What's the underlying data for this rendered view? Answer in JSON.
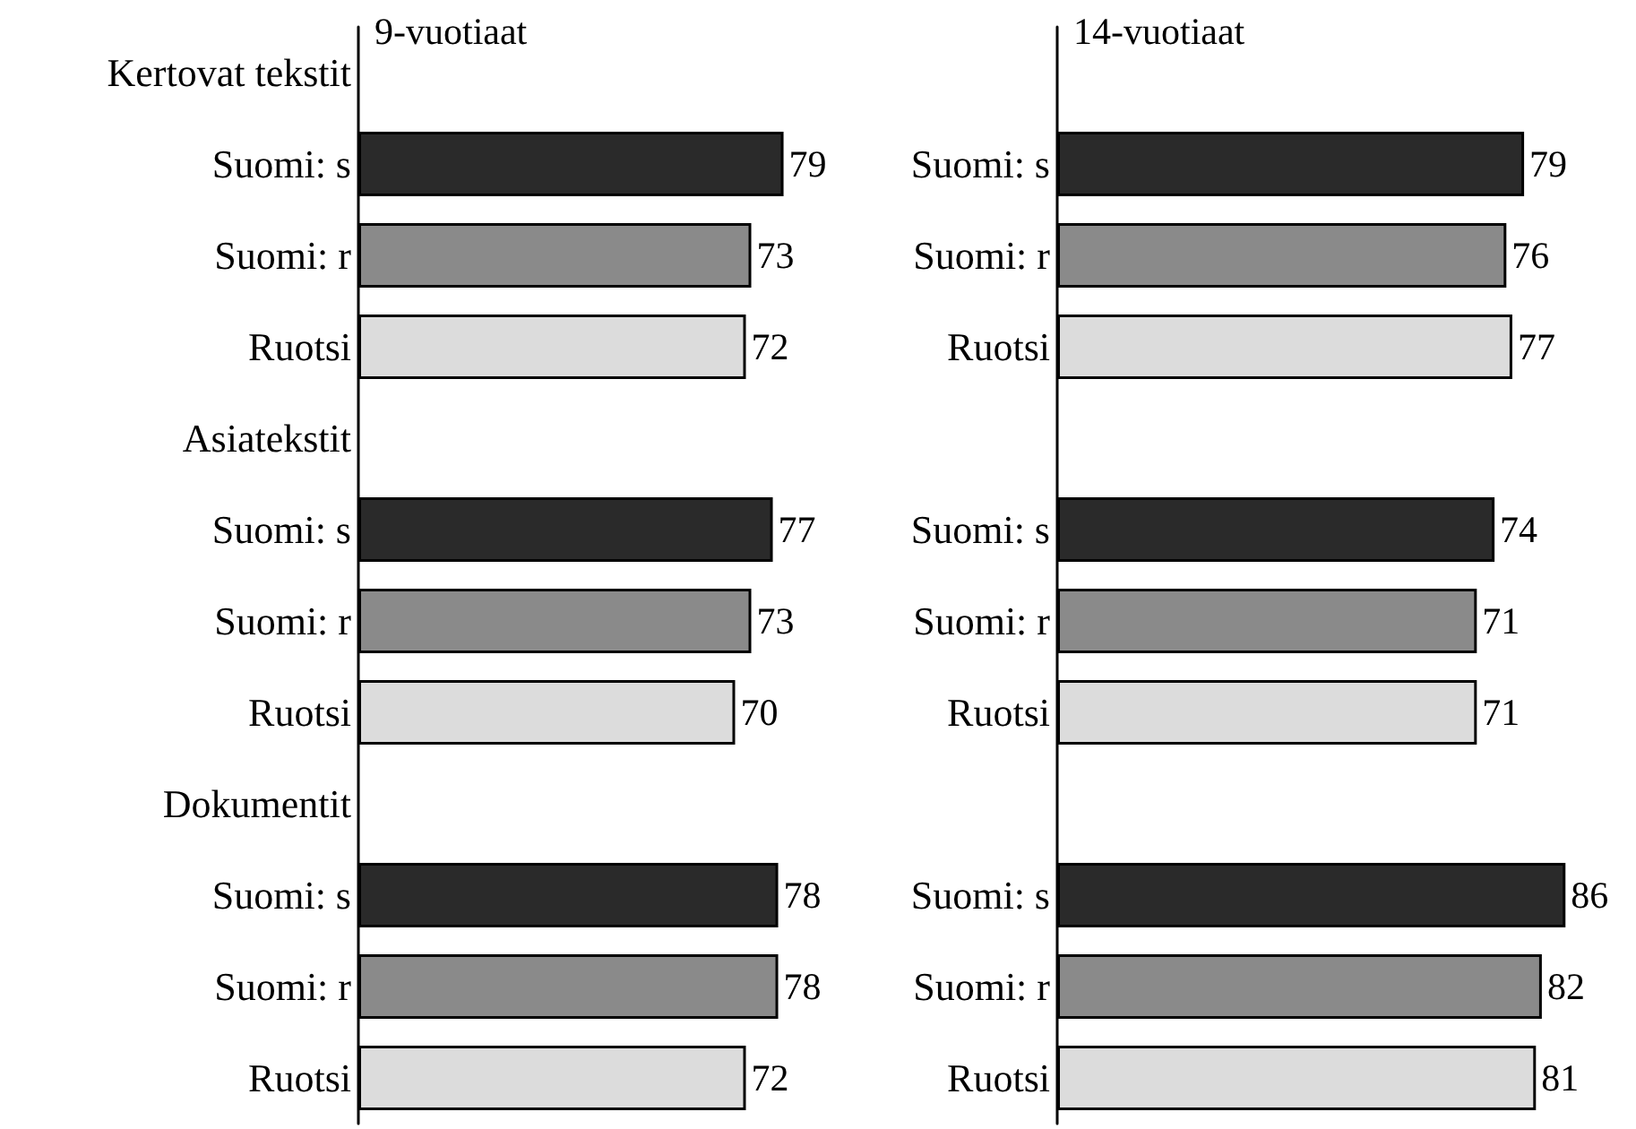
{
  "chart_data": [
    {
      "type": "bar",
      "orientation": "horizontal",
      "title": "9-vuotiaat",
      "data_labels": true,
      "tick_labels": "y",
      "categories": [
        "Kertovat tekstit",
        "Suomi: s",
        "Suomi: r",
        "Ruotsi",
        "Asiatekstit",
        "Suomi: s",
        "Suomi: r",
        "Ruotsi",
        "Dokumentit",
        "Suomi: s",
        "Suomi: r",
        "Ruotsi"
      ],
      "values": [
        null,
        79,
        73,
        72,
        null,
        77,
        73,
        70,
        null,
        78,
        78,
        72
      ],
      "colors": [
        null,
        "#2a2a2a",
        "#8a8a8a",
        "#dcdcdc",
        null,
        "#2a2a2a",
        "#8a8a8a",
        "#dcdcdc",
        null,
        "#2a2a2a",
        "#8a8a8a",
        "#dcdcdc"
      ]
    },
    {
      "type": "bar",
      "orientation": "horizontal",
      "title": "14-vuotiaat",
      "data_labels": true,
      "tick_labels": "y",
      "categories": [
        null,
        "Suomi: s",
        "Suomi: r",
        "Ruotsi",
        null,
        "Suomi: s",
        "Suomi: r",
        "Ruotsi",
        null,
        "Suomi: s",
        "Suomi: r",
        "Ruotsi"
      ],
      "values": [
        null,
        79,
        76,
        77,
        null,
        74,
        71,
        71,
        null,
        86,
        82,
        81
      ],
      "colors": [
        null,
        "#2a2a2a",
        "#8a8a8a",
        "#dcdcdc",
        null,
        "#2a2a2a",
        "#8a8a8a",
        "#dcdcdc",
        null,
        "#2a2a2a",
        "#8a8a8a",
        "#dcdcdc"
      ]
    }
  ]
}
